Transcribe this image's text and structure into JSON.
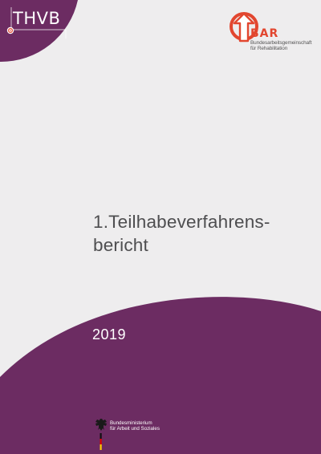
{
  "cover": {
    "thvb_logo_text": "THVB",
    "bar_logo": {
      "letters": "BAR",
      "line1": "Bundesarbeitsgemeinschaft",
      "line2": "für Rehabilitation"
    },
    "title": {
      "line1": "1.Teilhabeverfahrens-",
      "line2": "bericht"
    },
    "year": "2019",
    "ministry": {
      "line1": "Bundesministerium",
      "line2": "für Arbeit und Soziales"
    },
    "colors": {
      "background": "#eeedee",
      "purple": "#6c2c62",
      "title_gray": "#4e4e50",
      "bar_red": "#e2462f",
      "bar_orange": "#ef8b3a"
    }
  }
}
